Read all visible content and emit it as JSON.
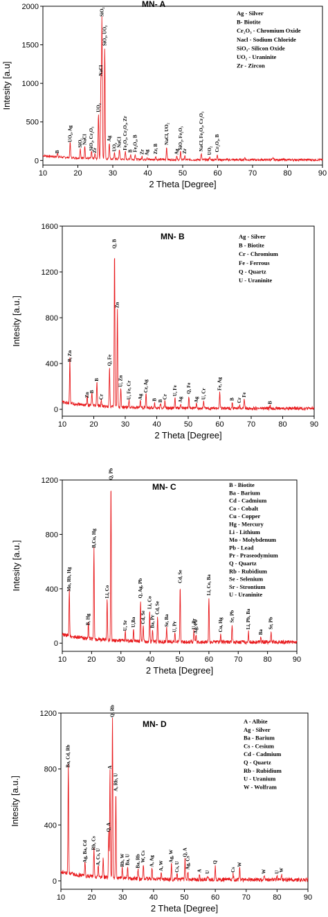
{
  "chart_data": [
    {
      "type": "line",
      "title": "MN- A",
      "xlabel": "2 Theta [Degree]",
      "ylabel": "Intesity [a.u]",
      "xlim": [
        10,
        90
      ],
      "ylim": [
        -60,
        2000
      ],
      "xticks": [
        "10",
        "20",
        "30",
        "40",
        "50",
        "60",
        "70",
        "80",
        "90"
      ],
      "yticks": [
        "0",
        "500",
        "1000",
        "1500",
        "2000"
      ],
      "line_color": "#e8191c",
      "legend": [
        "Ag - Silver",
        "B- Biotite",
        "Cr₂O₃ - Chromium Oxide",
        "Nacl - Sodium Chloride",
        "SiO₂- Silicon Oxide",
        "UO₂ - Uraninite",
        "Zr - Zircon"
      ],
      "peaks": [
        {
          "x": 14.2,
          "y": 55,
          "label": "B"
        },
        {
          "x": 17.8,
          "y": 200,
          "label": "UO₂, Ag"
        },
        {
          "x": 20.7,
          "y": 130,
          "label": "SiO₂"
        },
        {
          "x": 22.0,
          "y": 165,
          "label": "NaCl"
        },
        {
          "x": 23.9,
          "y": 90,
          "label": "SiO₂, Cr₂O₃"
        },
        {
          "x": 24.9,
          "y": 60,
          "label": "Zr"
        },
        {
          "x": 25.9,
          "y": 590,
          "label": "UO₂"
        },
        {
          "x": 26.6,
          "y": 1060,
          "label": "NaCl"
        },
        {
          "x": 26.9,
          "y": 1830,
          "label": "SiO₂"
        },
        {
          "x": 27.7,
          "y": 1450,
          "label": "SiO₂, UO₂"
        },
        {
          "x": 29.0,
          "y": 210,
          "label": "Ag"
        },
        {
          "x": 30.5,
          "y": 80,
          "label": "UO₂"
        },
        {
          "x": 31.9,
          "y": 130,
          "label": "NaCl"
        },
        {
          "x": 33.6,
          "y": 95,
          "label": "Fe₂O₃, Cr₂O₃, Zr"
        },
        {
          "x": 35.1,
          "y": 65,
          "label": "B"
        },
        {
          "x": 36.4,
          "y": 70,
          "label": "Fe₂O₃, B"
        },
        {
          "x": 38.4,
          "y": 40,
          "label": "Zr"
        },
        {
          "x": 39.8,
          "y": 30,
          "label": "Ag"
        },
        {
          "x": 42.3,
          "y": 45,
          "label": "Zr, B"
        },
        {
          "x": 45.4,
          "y": 165,
          "label": "NaCl, UO₂"
        },
        {
          "x": 48.3,
          "y": 40,
          "label": "Ag"
        },
        {
          "x": 49.4,
          "y": 100,
          "label": "SiO₂, Fe₂O₃"
        },
        {
          "x": 50.6,
          "y": 50,
          "label": "Zr"
        },
        {
          "x": 55.3,
          "y": 80,
          "label": "NaCl, Fe₂O₃, Cr₂O₃"
        },
        {
          "x": 57.7,
          "y": 35,
          "label": "UO₂"
        },
        {
          "x": 59.9,
          "y": 70,
          "label": "Cr₂O₃, B"
        },
        {
          "x": 67.8,
          "y": 30,
          "label": ""
        },
        {
          "x": 75.9,
          "y": 25,
          "label": ""
        }
      ]
    },
    {
      "type": "line",
      "title": "MN- B",
      "xlabel": "2 Theta [Degree]",
      "ylabel": "Intesity [a.u.]",
      "xlim": [
        10,
        90
      ],
      "ylim": [
        -60,
        1600
      ],
      "xticks": [
        "10",
        "20",
        "30",
        "40",
        "50",
        "60",
        "70",
        "80",
        "90"
      ],
      "yticks": [
        "0",
        "400",
        "800",
        "1200",
        "1600"
      ],
      "line_color": "#e8191c",
      "legend": [
        "Ag - Silver",
        "B - Biotite",
        "Cr - Chromium",
        "Fe - Ferrous",
        "Q - Quartz",
        "U - Uraninite"
      ],
      "peaks": [
        {
          "x": 12.4,
          "y": 390,
          "label": "B, Zn"
        },
        {
          "x": 17.9,
          "y": 75,
          "label": "Zn"
        },
        {
          "x": 19.4,
          "y": 115,
          "label": "B"
        },
        {
          "x": 21.0,
          "y": 220,
          "label": "B"
        },
        {
          "x": 22.4,
          "y": 60,
          "label": "Cr"
        },
        {
          "x": 25.0,
          "y": 355,
          "label": "Q, Fe"
        },
        {
          "x": 26.6,
          "y": 1380,
          "label": "Q, B"
        },
        {
          "x": 27.5,
          "y": 860,
          "label": "Zn"
        },
        {
          "x": 28.6,
          "y": 170,
          "label": "U, Zn"
        },
        {
          "x": 31.2,
          "y": 60,
          "label": "U, Fe, Cr"
        },
        {
          "x": 34.8,
          "y": 60,
          "label": "Ag"
        },
        {
          "x": 36.6,
          "y": 120,
          "label": "Cr, Ag"
        },
        {
          "x": 39.3,
          "y": 45,
          "label": "B"
        },
        {
          "x": 41.2,
          "y": 35,
          "label": "B"
        },
        {
          "x": 42.6,
          "y": 60,
          "label": "Cr"
        },
        {
          "x": 45.8,
          "y": 90,
          "label": "U, Fe"
        },
        {
          "x": 47.6,
          "y": 35,
          "label": "Ag"
        },
        {
          "x": 50.2,
          "y": 110,
          "label": "Q, Fe"
        },
        {
          "x": 52.6,
          "y": 35,
          "label": "Ag"
        },
        {
          "x": 54.9,
          "y": 60,
          "label": "U, Cr"
        },
        {
          "x": 60.0,
          "y": 140,
          "label": "Fe, Ag"
        },
        {
          "x": 64.0,
          "y": 50,
          "label": "B"
        },
        {
          "x": 67.8,
          "y": 80,
          "label": "Fe"
        },
        {
          "x": 66.3,
          "y": 30,
          "label": "Cr"
        },
        {
          "x": 76.0,
          "y": 20,
          "label": "B"
        }
      ]
    },
    {
      "type": "line",
      "title": "MN- C",
      "xlabel": "2 Theta [Degree]",
      "ylabel": "Intesity [a.u.]",
      "xlim": [
        10,
        90
      ],
      "ylim": [
        -60,
        1200
      ],
      "xticks": [
        "10",
        "20",
        "30",
        "40",
        "50",
        "60",
        "70",
        "80",
        "90"
      ],
      "yticks": [
        "0",
        "400",
        "800",
        "1200"
      ],
      "line_color": "#e8191c",
      "legend": [
        "B - Biotite",
        "Ba - Barium",
        "Cd - Cadmium",
        "Co - Cobalt",
        "Cu - Copper",
        "Hg - Mercury",
        "Li - Lithium",
        "Mo - Molybdenum",
        "Pb - Lead",
        "Pr - Praseodymium",
        "Q - Quartz",
        "Rb - Rubidium",
        "Se - Selenium",
        "Sr - Strontium",
        "U - Uraninite"
      ],
      "peaks": [
        {
          "x": 12.4,
          "y": 360,
          "label": "Mo, Rb, Hg"
        },
        {
          "x": 18.9,
          "y": 110,
          "label": "B, Hg"
        },
        {
          "x": 20.8,
          "y": 680,
          "label": "B,Cu, Hg"
        },
        {
          "x": 25.3,
          "y": 310,
          "label": "Li, Co"
        },
        {
          "x": 26.6,
          "y": 1180,
          "label": "Q, Pb"
        },
        {
          "x": 31.5,
          "y": 70,
          "label": "U, Sr"
        },
        {
          "x": 34.3,
          "y": 95,
          "label": "U,Ba"
        },
        {
          "x": 36.7,
          "y": 310,
          "label": "Q, Ag, Pb"
        },
        {
          "x": 37.6,
          "y": 120,
          "label": "Cd, Se"
        },
        {
          "x": 39.8,
          "y": 230,
          "label": "Li, Co"
        },
        {
          "x": 40.8,
          "y": 90,
          "label": "Ba, Pr"
        },
        {
          "x": 42.5,
          "y": 190,
          "label": "Cd, Se"
        },
        {
          "x": 45.6,
          "y": 100,
          "label": "Sr, Ba"
        },
        {
          "x": 48.4,
          "y": 60,
          "label": "U, Pr"
        },
        {
          "x": 50.2,
          "y": 420,
          "label": "Cd, Se"
        },
        {
          "x": 54.9,
          "y": 80,
          "label": "U, Pr"
        },
        {
          "x": 55.6,
          "y": 50,
          "label": "Ag, Pb"
        },
        {
          "x": 60.0,
          "y": 330,
          "label": "Li, Co, Ba"
        },
        {
          "x": 64.0,
          "y": 60,
          "label": "Cu, Hg"
        },
        {
          "x": 67.9,
          "y": 130,
          "label": "Sr, Pb"
        },
        {
          "x": 73.5,
          "y": 80,
          "label": "Li, Pb, Ba"
        },
        {
          "x": 77.7,
          "y": 40,
          "label": "Ba"
        },
        {
          "x": 81.2,
          "y": 80,
          "label": "Sr, Pb"
        }
      ]
    },
    {
      "type": "line",
      "title": "MN- D",
      "xlabel": "2 Theta [Degree]",
      "ylabel": "Intesity [a.u.]",
      "xlim": [
        10,
        90
      ],
      "ylim": [
        -60,
        1200
      ],
      "xticks": [
        "10",
        "20",
        "30",
        "40",
        "50",
        "60",
        "70",
        "80",
        "90"
      ],
      "yticks": [
        "0",
        "400",
        "800",
        "1200"
      ],
      "line_color": "#e8191c",
      "legend": [
        "A - Albite",
        "Ag - Silver",
        "Ba - Barium",
        "Cs - Cesium",
        "Cd - Cadmium",
        "Q - Quartz",
        "Rb - Rubidium",
        "U - Uranium",
        "W - Wolfram"
      ],
      "peaks": [
        {
          "x": 12.4,
          "y": 790,
          "label": "Ba, Cd, Rb"
        },
        {
          "x": 17.8,
          "y": 110,
          "label": "Ag, Ba, Cd"
        },
        {
          "x": 20.7,
          "y": 200,
          "label": "Rb, Cs"
        },
        {
          "x": 22.1,
          "y": 90,
          "label": "A, Cs, U"
        },
        {
          "x": 23.7,
          "y": 140,
          "label": ""
        },
        {
          "x": 25.5,
          "y": 330,
          "label": "Q, A"
        },
        {
          "x": 25.9,
          "y": 780,
          "label": "A"
        },
        {
          "x": 26.7,
          "y": 1150,
          "label": "Q, Rb"
        },
        {
          "x": 27.8,
          "y": 620,
          "label": "A, Rb, U"
        },
        {
          "x": 29.9,
          "y": 80,
          "label": "Rb, W"
        },
        {
          "x": 31.6,
          "y": 90,
          "label": "Ba, U"
        },
        {
          "x": 35.0,
          "y": 70,
          "label": "Ba, Rb"
        },
        {
          "x": 36.7,
          "y": 110,
          "label": "W, Cs"
        },
        {
          "x": 39.5,
          "y": 80,
          "label": "A, Ag"
        },
        {
          "x": 42.5,
          "y": 50,
          "label": "A, W"
        },
        {
          "x": 45.8,
          "y": 110,
          "label": "Ag, W"
        },
        {
          "x": 47.6,
          "y": 40,
          "label": "Cs, U"
        },
        {
          "x": 50.2,
          "y": 150,
          "label": "Q, A"
        },
        {
          "x": 51.1,
          "y": 60,
          "label": "Ag, Cs"
        },
        {
          "x": 54.9,
          "y": 40,
          "label": "A"
        },
        {
          "x": 57.5,
          "y": 30,
          "label": "U"
        },
        {
          "x": 60.0,
          "y": 100,
          "label": "Q"
        },
        {
          "x": 65.8,
          "y": 40,
          "label": "Cs"
        },
        {
          "x": 67.9,
          "y": 80,
          "label": "W"
        },
        {
          "x": 75.8,
          "y": 30,
          "label": "W"
        },
        {
          "x": 80.0,
          "y": 30,
          "label": "U"
        },
        {
          "x": 81.5,
          "y": 40,
          "label": "W"
        }
      ]
    }
  ]
}
